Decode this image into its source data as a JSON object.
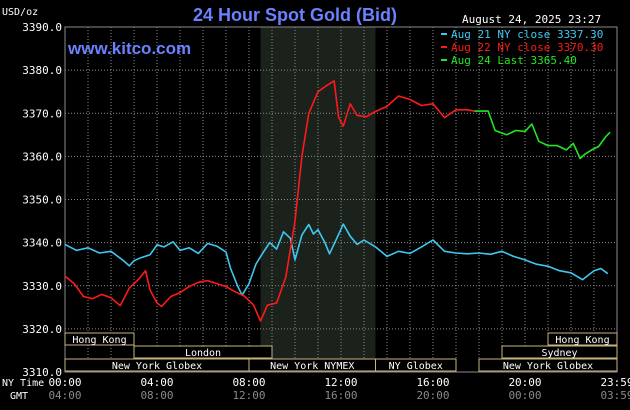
{
  "chart_data": {
    "type": "line",
    "title": "24 Hour Spot Gold (Bid)",
    "watermark": "www.kitco.com",
    "timestamp": "August 24, 2025 23:27",
    "ylabel": "USD/oz",
    "ylim": [
      3310,
      3390
    ],
    "y_ticks": [
      "3390.0",
      "3380.0",
      "3370.0",
      "3360.0",
      "3350.0",
      "3340.0",
      "3330.0",
      "3320.0",
      "3310.0"
    ],
    "x_label_ny": "NY Time",
    "x_label_gmt": "GMT",
    "x_ticks_ny": [
      "00:00",
      "04:00",
      "08:00",
      "12:00",
      "16:00",
      "20:00",
      "23:59"
    ],
    "x_ticks_gmt": [
      "04:00",
      "08:00",
      "12:00",
      "16:00",
      "20:00",
      "00:00",
      "03:59"
    ],
    "grid": true,
    "legend_position": "top-right",
    "background": "#000000",
    "grid_color": "#8a8a8a",
    "highlight_band": {
      "from": "08:30",
      "to": "13:30",
      "color": "#1b211b"
    },
    "series": [
      {
        "name": "Aug 21 NY close 3337.30",
        "color": "#3ec8f0",
        "points": [
          [
            0.0,
            3339.6
          ],
          [
            0.5,
            3338.2
          ],
          [
            1.0,
            3338.8
          ],
          [
            1.5,
            3337.6
          ],
          [
            2.0,
            3338.0
          ],
          [
            2.5,
            3336.0
          ],
          [
            2.8,
            3334.6
          ],
          [
            3.0,
            3335.8
          ],
          [
            3.3,
            3336.5
          ],
          [
            3.7,
            3337.2
          ],
          [
            4.0,
            3339.5
          ],
          [
            4.3,
            3339.0
          ],
          [
            4.7,
            3340.2
          ],
          [
            5.0,
            3338.2
          ],
          [
            5.4,
            3338.8
          ],
          [
            5.8,
            3337.5
          ],
          [
            6.2,
            3339.8
          ],
          [
            6.6,
            3339.2
          ],
          [
            7.0,
            3337.8
          ],
          [
            7.2,
            3334.0
          ],
          [
            7.5,
            3330.0
          ],
          [
            7.7,
            3327.8
          ],
          [
            8.0,
            3330.5
          ],
          [
            8.3,
            3335.0
          ],
          [
            8.6,
            3337.6
          ],
          [
            8.9,
            3340.0
          ],
          [
            9.2,
            3338.5
          ],
          [
            9.5,
            3342.5
          ],
          [
            9.8,
            3341.0
          ],
          [
            10.0,
            3336.0
          ],
          [
            10.3,
            3341.8
          ],
          [
            10.6,
            3344.2
          ],
          [
            10.8,
            3342.0
          ],
          [
            11.0,
            3343.0
          ],
          [
            11.3,
            3340.0
          ],
          [
            11.5,
            3337.4
          ],
          [
            11.8,
            3340.8
          ],
          [
            12.1,
            3344.3
          ],
          [
            12.4,
            3341.5
          ],
          [
            12.7,
            3339.6
          ],
          [
            13.0,
            3340.6
          ],
          [
            13.5,
            3339.0
          ],
          [
            14.0,
            3336.8
          ],
          [
            14.5,
            3338.0
          ],
          [
            15.0,
            3337.5
          ],
          [
            15.5,
            3339.0
          ],
          [
            16.0,
            3340.6
          ],
          [
            16.5,
            3338.0
          ],
          [
            17.0,
            3337.6
          ],
          [
            17.5,
            3337.4
          ],
          [
            18.0,
            3337.6
          ],
          [
            18.5,
            3337.3
          ],
          [
            19.0,
            3338.0
          ],
          [
            19.5,
            3336.8
          ],
          [
            20.0,
            3336.0
          ],
          [
            20.5,
            3335.0
          ],
          [
            21.0,
            3334.5
          ],
          [
            21.5,
            3333.5
          ],
          [
            22.0,
            3333.0
          ],
          [
            22.5,
            3331.4
          ],
          [
            23.0,
            3333.5
          ],
          [
            23.3,
            3334.0
          ],
          [
            23.6,
            3332.8
          ]
        ]
      },
      {
        "name": "Aug 22 NY close 3370.30",
        "color": "#ff1a1a",
        "points": [
          [
            0.0,
            3332.2
          ],
          [
            0.4,
            3330.5
          ],
          [
            0.8,
            3327.5
          ],
          [
            1.2,
            3327.0
          ],
          [
            1.6,
            3328.0
          ],
          [
            2.0,
            3327.2
          ],
          [
            2.4,
            3325.4
          ],
          [
            2.8,
            3329.5
          ],
          [
            3.2,
            3331.5
          ],
          [
            3.5,
            3333.5
          ],
          [
            3.7,
            3329.0
          ],
          [
            4.0,
            3326.0
          ],
          [
            4.2,
            3325.2
          ],
          [
            4.6,
            3327.5
          ],
          [
            5.0,
            3328.4
          ],
          [
            5.4,
            3329.8
          ],
          [
            5.8,
            3330.8
          ],
          [
            6.2,
            3331.2
          ],
          [
            6.6,
            3330.5
          ],
          [
            7.0,
            3329.8
          ],
          [
            7.4,
            3328.6
          ],
          [
            7.8,
            3327.6
          ],
          [
            8.2,
            3325.5
          ],
          [
            8.5,
            3321.8
          ],
          [
            8.8,
            3325.5
          ],
          [
            9.2,
            3326.0
          ],
          [
            9.6,
            3332.0
          ],
          [
            10.0,
            3345.0
          ],
          [
            10.3,
            3360.0
          ],
          [
            10.6,
            3370.0
          ],
          [
            11.0,
            3375.0
          ],
          [
            11.4,
            3376.5
          ],
          [
            11.7,
            3377.5
          ],
          [
            11.9,
            3369.0
          ],
          [
            12.1,
            3367.0
          ],
          [
            12.4,
            3372.2
          ],
          [
            12.7,
            3369.5
          ],
          [
            13.1,
            3369.2
          ],
          [
            13.5,
            3370.4
          ],
          [
            14.0,
            3371.6
          ],
          [
            14.5,
            3374.0
          ],
          [
            15.0,
            3373.2
          ],
          [
            15.5,
            3371.8
          ],
          [
            16.0,
            3372.2
          ],
          [
            16.5,
            3369.0
          ],
          [
            17.0,
            3370.8
          ],
          [
            17.5,
            3370.8
          ],
          [
            17.8,
            3370.5
          ]
        ]
      },
      {
        "name": "Aug 24 Last 3365.40",
        "color": "#22e622",
        "points": [
          [
            17.8,
            3370.5
          ],
          [
            18.4,
            3370.5
          ],
          [
            18.7,
            3366.0
          ],
          [
            19.2,
            3365.0
          ],
          [
            19.6,
            3366.0
          ],
          [
            20.0,
            3365.8
          ],
          [
            20.3,
            3367.5
          ],
          [
            20.6,
            3363.5
          ],
          [
            21.0,
            3362.5
          ],
          [
            21.4,
            3362.5
          ],
          [
            21.8,
            3361.5
          ],
          [
            22.1,
            3363.0
          ],
          [
            22.4,
            3359.5
          ],
          [
            22.6,
            3360.5
          ],
          [
            22.9,
            3361.5
          ],
          [
            23.2,
            3362.3
          ],
          [
            23.5,
            3364.5
          ],
          [
            23.7,
            3365.6
          ]
        ]
      }
    ],
    "sessions": [
      {
        "label": "Hong Kong",
        "row": 1,
        "start": 0.0,
        "end": 3.0
      },
      {
        "label": "London",
        "row": 2,
        "start": 3.0,
        "end": 9.0
      },
      {
        "label": "New York Globex",
        "row": 3,
        "start": 0.0,
        "end": 8.0
      },
      {
        "label": "New York NYMEX",
        "row": 3,
        "start": 8.0,
        "end": 13.5
      },
      {
        "label": "NY Globex",
        "row": 3,
        "start": 13.5,
        "end": 17.0
      },
      {
        "label": "Hong Kong",
        "row": 1,
        "start": 21.0,
        "end": 24.0
      },
      {
        "label": "Sydney",
        "row": 2,
        "start": 19.0,
        "end": 24.0
      },
      {
        "label": "New York Globex",
        "row": 3,
        "start": 18.0,
        "end": 24.0
      }
    ]
  }
}
